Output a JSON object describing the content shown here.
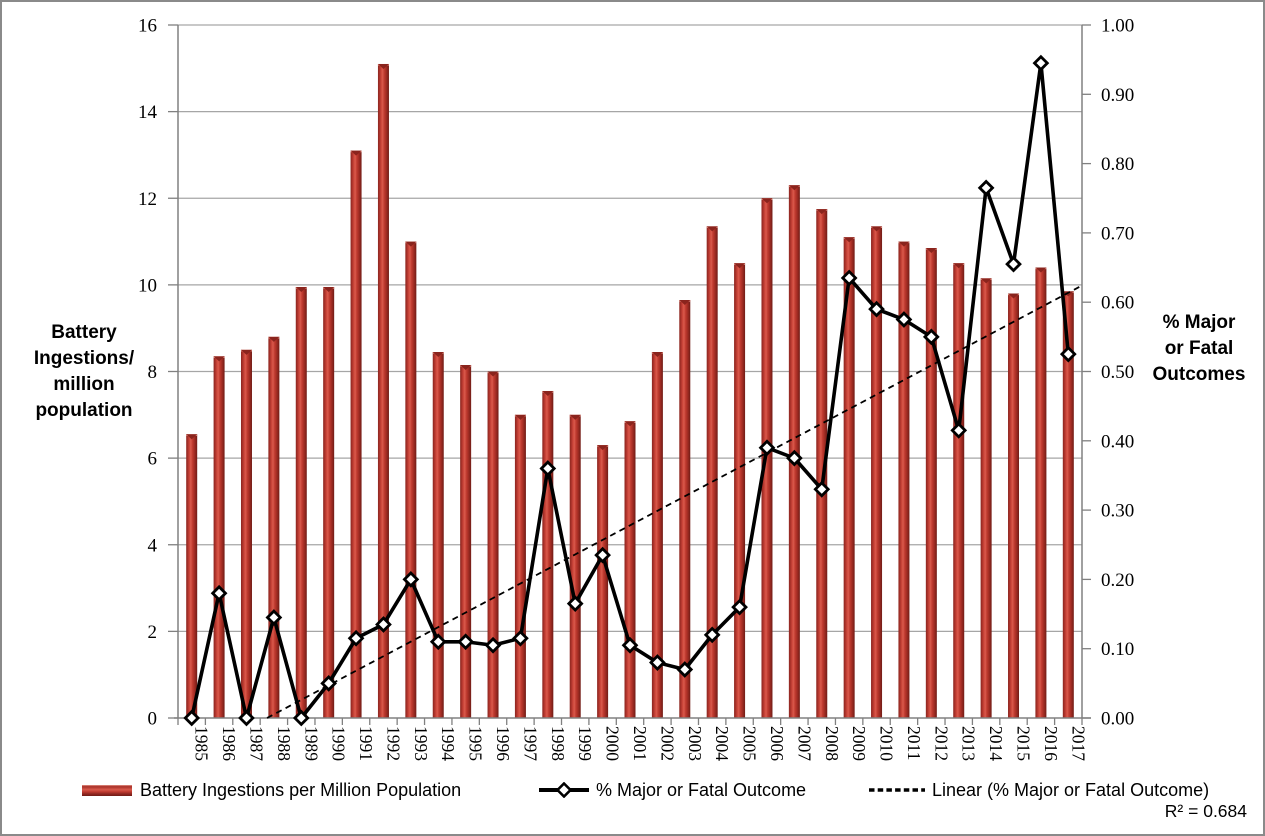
{
  "chart_data": {
    "type": "combo-bar-line",
    "categories": [
      "1985",
      "1986",
      "1987",
      "1988",
      "1989",
      "1990",
      "1991",
      "1992",
      "1993",
      "1994",
      "1995",
      "1996",
      "1997",
      "1998",
      "1999",
      "2000",
      "2001",
      "2002",
      "2003",
      "2004",
      "2005",
      "2006",
      "2007",
      "2008",
      "2009",
      "2010",
      "2011",
      "2012",
      "2013",
      "2014",
      "2015",
      "2016",
      "2017"
    ],
    "series": [
      {
        "name": "Battery Ingestions per Million Population",
        "type": "bar",
        "axis": "left",
        "values": [
          6.55,
          8.35,
          8.5,
          8.8,
          9.95,
          9.95,
          13.1,
          15.1,
          11.0,
          8.45,
          8.15,
          8.0,
          7.0,
          7.55,
          7.0,
          6.3,
          6.85,
          8.45,
          9.65,
          11.35,
          10.5,
          12.0,
          12.3,
          11.75,
          11.1,
          11.35,
          11.0,
          10.85,
          10.5,
          10.15,
          9.8,
          10.4,
          9.85
        ]
      },
      {
        "name": "% Major or Fatal Outcome",
        "type": "line",
        "axis": "right",
        "values": [
          0.0,
          0.18,
          0.0,
          0.145,
          0.0,
          0.05,
          0.115,
          0.135,
          0.2,
          0.11,
          0.11,
          0.105,
          0.115,
          0.36,
          0.165,
          0.235,
          0.105,
          0.08,
          0.07,
          0.12,
          0.16,
          0.39,
          0.375,
          0.33,
          0.635,
          0.59,
          0.575,
          0.55,
          0.415,
          0.765,
          0.655,
          0.945,
          0.525
        ]
      },
      {
        "name": "Linear (% Major or Fatal Outcome)",
        "type": "trendline",
        "axis": "right",
        "start": {
          "year": 1987.75,
          "value": 0.0
        },
        "end": {
          "year": 2017.4,
          "value": 0.622
        },
        "r_squared": 0.684
      }
    ],
    "left_axis": {
      "label": "Battery Ingestions/ million population",
      "min": 0,
      "max": 16,
      "tick_labels": [
        "0",
        "2",
        "4",
        "6",
        "8",
        "10",
        "12",
        "14",
        "16"
      ]
    },
    "right_axis": {
      "label": "% Major or Fatal Outcomes",
      "min": 0.0,
      "max": 1.0,
      "tick_labels": [
        "0.00",
        "0.10",
        "0.20",
        "0.30",
        "0.40",
        "0.50",
        "0.60",
        "0.70",
        "0.80",
        "0.90",
        "1.00"
      ]
    },
    "grid": true,
    "legend_position": "bottom"
  },
  "display": {
    "left_axis_title": "Battery\nIngestions/\nmillion\npopulation",
    "right_axis_title": "% Major\nor Fatal\nOutcomes",
    "legend": {
      "bars_label": "Battery Ingestions per Million Population",
      "line_label": "% Major or Fatal Outcome",
      "trend_label": "Linear (% Major or Fatal Outcome)"
    },
    "r_squared_text": "R² = 0.684"
  },
  "colors": {
    "bar_main": "#c23c31",
    "bar_highlight": "#d85a4c",
    "bar_dark_edge": "#701c16",
    "line_color": "#000000",
    "marker_fill": "#ffffff",
    "trendline_color": "#000000",
    "gridline_color": "#a6a6a6",
    "axis_color": "#808080",
    "text_color": "#000000",
    "frame_color": "#8a8a8a"
  }
}
